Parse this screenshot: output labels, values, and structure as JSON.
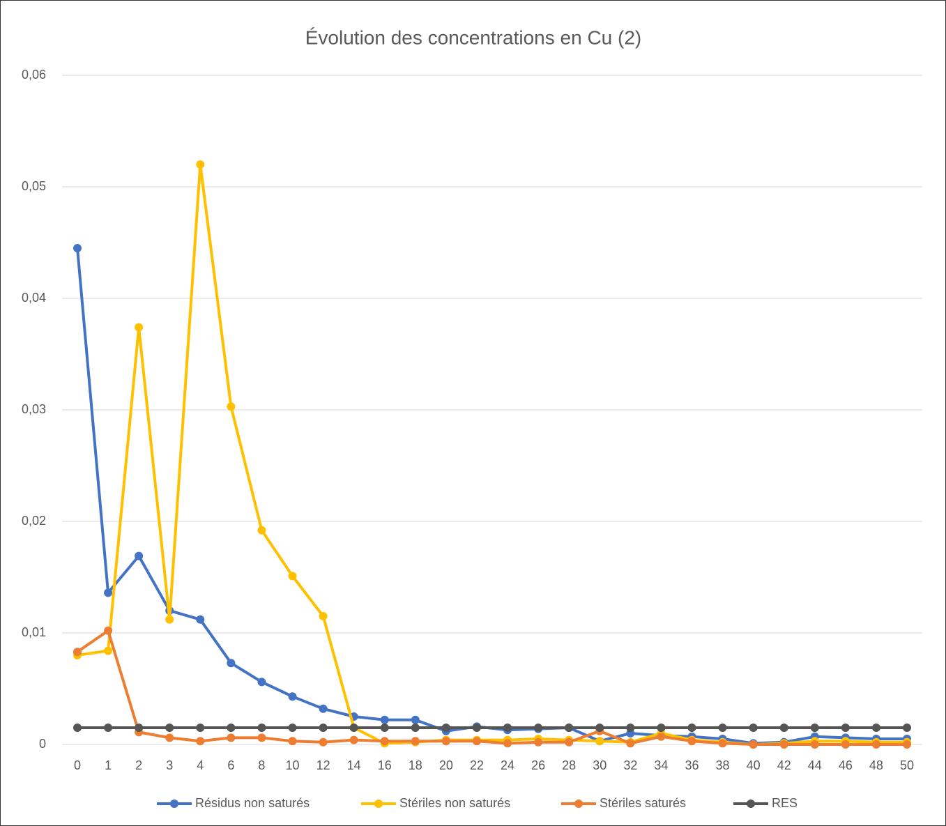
{
  "chart_data": {
    "type": "line",
    "title": "Évolution des concentrations en Cu (2)",
    "categories": [
      "0",
      "1",
      "2",
      "3",
      "4",
      "6",
      "8",
      "10",
      "12",
      "14",
      "16",
      "18",
      "20",
      "22",
      "24",
      "26",
      "28",
      "30",
      "32",
      "34",
      "36",
      "38",
      "40",
      "42",
      "44",
      "46",
      "48",
      "50"
    ],
    "series": [
      {
        "name": "Résidus non saturés",
        "color": "#4472c4",
        "values": [
          0.0445,
          0.0136,
          0.0169,
          0.012,
          0.0112,
          0.0073,
          0.0056,
          0.0043,
          0.0032,
          0.0025,
          0.0022,
          0.0022,
          0.0012,
          0.0016,
          0.0013,
          0.0014,
          0.0015,
          0.0003,
          0.001,
          0.0008,
          0.0007,
          0.0005,
          0.0001,
          0.0002,
          0.0007,
          0.0006,
          0.0005,
          0.0005
        ]
      },
      {
        "name": "Stériles non saturés",
        "color": "#ffc000",
        "values": [
          0.008,
          0.0084,
          0.0374,
          0.0112,
          0.052,
          0.0303,
          0.0192,
          0.0151,
          0.0115,
          0.0015,
          0.0001,
          0.0002,
          0.0004,
          0.0004,
          0.0004,
          0.0005,
          0.0004,
          0.0003,
          0.0002,
          0.001,
          0.0004,
          0.0002,
          0,
          0.0001,
          0.0003,
          0.0003,
          0.0002,
          0.0002
        ]
      },
      {
        "name": "Stériles saturés",
        "color": "#ed7d31",
        "values": [
          0.0083,
          0.0102,
          0.0011,
          0.0006,
          0.0003,
          0.0006,
          0.0006,
          0.0003,
          0.0002,
          0.0004,
          0.0003,
          0.0003,
          0.0003,
          0.0003,
          0.0001,
          0.0002,
          0.0002,
          0.0012,
          0.0001,
          0.0007,
          0.0003,
          0.0001,
          0,
          0,
          0,
          0,
          0,
          0
        ]
      },
      {
        "name": "RES",
        "color": "#555555",
        "values": [
          0.0015,
          0.0015,
          0.0015,
          0.0015,
          0.0015,
          0.0015,
          0.0015,
          0.0015,
          0.0015,
          0.0015,
          0.0015,
          0.0015,
          0.0015,
          0.0015,
          0.0015,
          0.0015,
          0.0015,
          0.0015,
          0.0015,
          0.0015,
          0.0015,
          0.0015,
          0.0015,
          0.0015,
          0.0015,
          0.0015,
          0.0015,
          0.0015
        ]
      }
    ],
    "ylim": [
      0,
      0.06
    ],
    "yticks": [
      0,
      {
        "value": 0.01,
        "label": "0,01"
      },
      {
        "value": 0.02,
        "label": "0,02"
      },
      {
        "value": 0.03,
        "label": "0,03"
      },
      {
        "value": 0.04,
        "label": "0,04"
      },
      {
        "value": 0.05,
        "label": "0,05"
      },
      {
        "value": 0.06,
        "label": "0,06"
      }
    ],
    "grid": true,
    "legend": "bottom"
  }
}
